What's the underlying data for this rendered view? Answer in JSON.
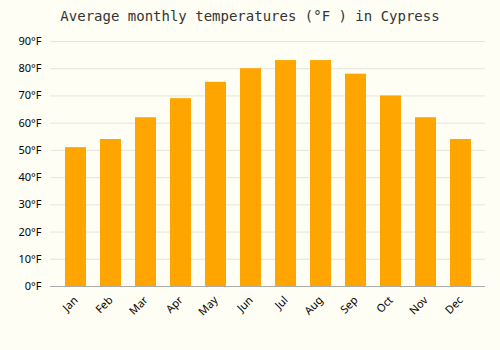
{
  "chart_data": {
    "type": "bar",
    "title": "Average monthly temperatures (°F ) in Cypress",
    "categories": [
      "Jan",
      "Feb",
      "Mar",
      "Apr",
      "May",
      "Jun",
      "Jul",
      "Aug",
      "Sep",
      "Oct",
      "Nov",
      "Dec"
    ],
    "values": [
      51,
      54,
      62,
      69,
      75,
      80,
      83,
      83,
      78,
      70,
      62,
      54
    ],
    "color": "#FFA500",
    "ylim": [
      0,
      90
    ],
    "yticks": [
      {
        "value": 0,
        "label": "0°F"
      },
      {
        "value": 10,
        "label": "10°F"
      },
      {
        "value": 20,
        "label": "20°F"
      },
      {
        "value": 30,
        "label": "30°F"
      },
      {
        "value": 40,
        "label": "40°F"
      },
      {
        "value": 50,
        "label": "50°F"
      },
      {
        "value": 60,
        "label": "60°F"
      },
      {
        "value": 70,
        "label": "70°F"
      },
      {
        "value": 80,
        "label": "80°F"
      },
      {
        "value": 90,
        "label": "90°F"
      }
    ],
    "grid": true
  }
}
